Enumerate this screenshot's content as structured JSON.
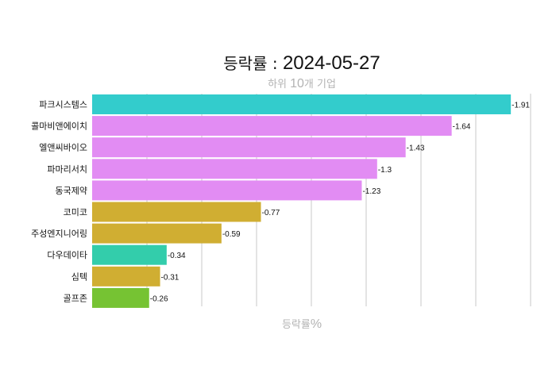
{
  "title": {
    "label": "등락률 : ",
    "date": "2024-05-27"
  },
  "subtitle": {
    "prefix": "하위 ",
    "count": "10",
    "suffix": "개 기업"
  },
  "xaxis": {
    "label": "등락률",
    "unit": "%"
  },
  "chart_data": {
    "type": "bar",
    "orientation": "horizontal",
    "title": "등락률 : 2024-05-27",
    "subtitle": "하위 10개 기업",
    "xlabel": "등락률%",
    "ylabel": "",
    "xlim": [
      0,
      2.0
    ],
    "grid": true,
    "categories": [
      "파크시스템스",
      "콜마비앤에이치",
      "엘앤씨바이오",
      "파마리서치",
      "동국제약",
      "코미코",
      "주성엔지니어링",
      "다우데이타",
      "심텍",
      "골프존"
    ],
    "values": [
      -1.91,
      -1.64,
      -1.43,
      -1.3,
      -1.23,
      -0.77,
      -0.59,
      -0.34,
      -0.31,
      -0.26
    ],
    "value_labels": [
      "-1.91",
      "-1.64",
      "-1.43",
      "-1.3",
      "-1.23",
      "-0.77",
      "-0.59",
      "-0.34",
      "-0.31",
      "-0.26"
    ],
    "colors": [
      "#33cccc",
      "#e28cf3",
      "#e28cf3",
      "#e28cf3",
      "#e28cf3",
      "#d0ae32",
      "#d0ae32",
      "#33cdab",
      "#d0ae32",
      "#76c333"
    ]
  }
}
